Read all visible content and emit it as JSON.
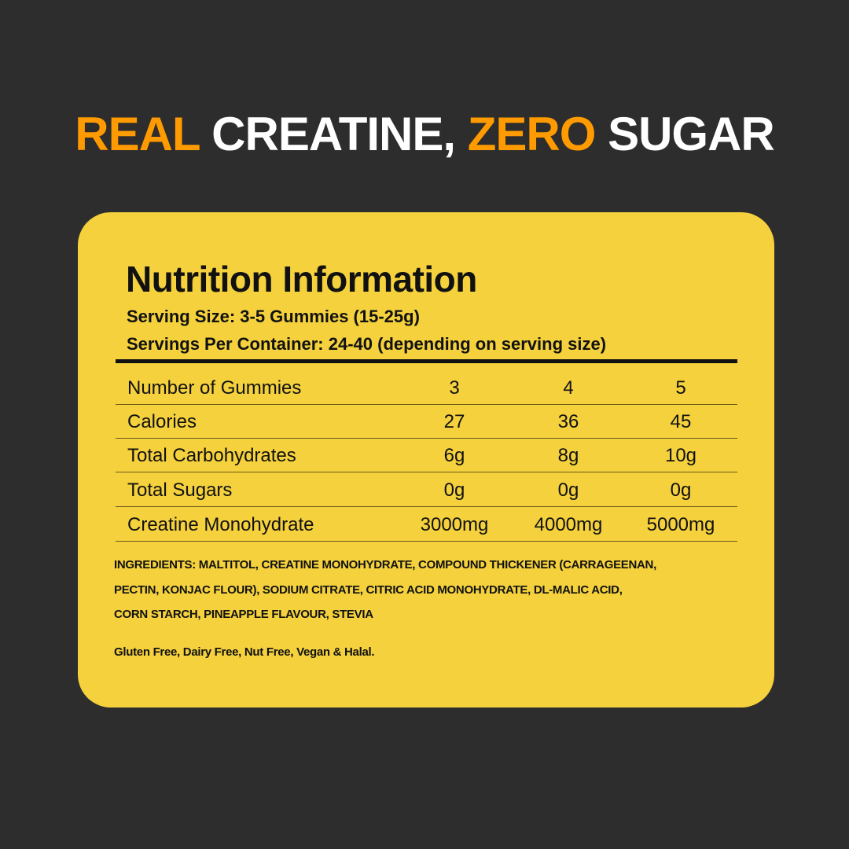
{
  "headline": {
    "w1": "REAL",
    "w2": "CREATINE,",
    "w3": "ZERO",
    "w4": "SUGAR",
    "accent_color": "#ff9a00",
    "text_color": "#ffffff"
  },
  "panel": {
    "title": "Nutrition Information",
    "serving_size": "Serving Size:  3-5 Gummies (15-25g)",
    "servings_per_container": "Servings Per Container:  24-40 (depending on serving size)",
    "background_color": "#f4d13d",
    "table": {
      "rows": [
        {
          "label": "Number of Gummies",
          "values": [
            "3",
            "4",
            "5"
          ]
        },
        {
          "label": "Calories",
          "values": [
            "27",
            "36",
            "45"
          ]
        },
        {
          "label": "Total Carbohydrates",
          "values": [
            "6g",
            "8g",
            "10g"
          ]
        },
        {
          "label": "Total Sugars",
          "values": [
            "0g",
            "0g",
            "0g"
          ]
        },
        {
          "label": "Creatine Monohydrate",
          "values": [
            "3000mg",
            "4000mg",
            "5000mg"
          ]
        }
      ]
    },
    "ingredients": [
      "INGREDIENTS: MALTITOL, CREATINE MONOHYDRATE, COMPOUND THICKENER (CARRAGEENAN,",
      "PECTIN, KONJAC FLOUR), SODIUM CITRATE, CITRIC ACID MONOHYDRATE, DL-MALIC ACID,",
      "CORN STARCH, PINEAPPLE FLAVOUR, STEVIA"
    ],
    "dietary": "Gluten Free, Dairy Free, Nut Free, Vegan & Halal."
  }
}
